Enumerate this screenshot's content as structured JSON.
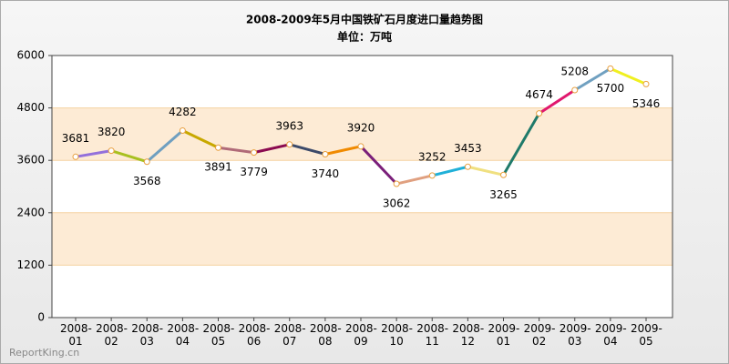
{
  "chart_data": {
    "type": "line",
    "title": "2008-2009年5月中国铁矿石月度进口量趋势图",
    "subtitle": "单位：万吨",
    "categories": [
      "2008-01",
      "2008-02",
      "2008-03",
      "2008-04",
      "2008-05",
      "2008-06",
      "2008-07",
      "2008-08",
      "2008-09",
      "2008-10",
      "2008-11",
      "2008-12",
      "2009-01",
      "2009-02",
      "2009-03",
      "2009-04",
      "2009-05"
    ],
    "values": [
      3681,
      3820,
      3568,
      4282,
      3891,
      3779,
      3963,
      3740,
      3920,
      3062,
      3252,
      3453,
      3265,
      4674,
      5208,
      5700,
      5346
    ],
    "segment_colors": [
      "#9370db",
      "#a8c020",
      "#6f9fc0",
      "#c8a800",
      "#b06a78",
      "#8b0a50",
      "#3c4a6a",
      "#f08a00",
      "#7a1f7a",
      "#e0a080",
      "#20b0d8",
      "#f0e080",
      "#1f7a6a",
      "#e0186e",
      "#70a0c0",
      "#f0f020"
    ],
    "ylim": [
      0,
      6000
    ],
    "yticks": [
      0,
      1200,
      2400,
      3600,
      4800,
      6000
    ],
    "bands": [
      [
        1200,
        2400
      ],
      [
        3600,
        4800
      ]
    ],
    "band_color": "#fdebd5",
    "grid": true,
    "watermark": "ReportKing.cn"
  }
}
